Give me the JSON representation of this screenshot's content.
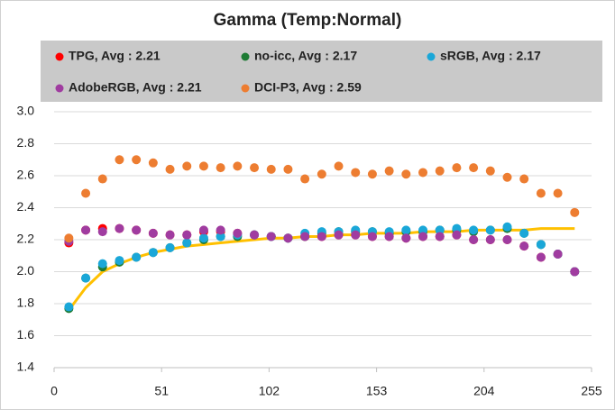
{
  "chart_data": {
    "type": "scatter",
    "title": "Gamma (Temp:Normal)",
    "x": [
      7,
      15,
      23,
      31,
      39,
      47,
      55,
      63,
      71,
      79,
      87,
      95,
      103,
      111,
      119,
      127,
      135,
      143,
      151,
      159,
      167,
      175,
      183,
      191,
      199,
      207,
      215,
      223,
      231,
      239,
      247
    ],
    "series": [
      {
        "name": "TPG, Avg : 2.21",
        "color": "#ff0000",
        "values": [
          2.18,
          2.26,
          2.27,
          2.27,
          2.26,
          2.24,
          2.23,
          2.23,
          2.25,
          2.25,
          2.24,
          2.23,
          2.22,
          2.21,
          2.22,
          2.22,
          2.23,
          2.23,
          2.22,
          2.22,
          2.21,
          2.22,
          2.22,
          2.23,
          2.2,
          2.2,
          2.2,
          2.16,
          2.09,
          2.11,
          2.0
        ]
      },
      {
        "name": "no-icc, Avg : 2.17",
        "color": "#1e7b34",
        "values": [
          1.77,
          1.96,
          2.03,
          2.06,
          2.09,
          2.12,
          2.15,
          2.18,
          2.2,
          2.22,
          2.22,
          2.23,
          2.22,
          2.21,
          2.22,
          2.24,
          2.25,
          2.25,
          2.25,
          2.24,
          2.25,
          2.25,
          2.26,
          2.26,
          2.25,
          2.26,
          2.27,
          2.24,
          2.17,
          2.11,
          2.0
        ]
      },
      {
        "name": "sRGB, Avg : 2.17",
        "color": "#1aa7d8",
        "values": [
          1.78,
          1.96,
          2.05,
          2.07,
          2.09,
          2.12,
          2.15,
          2.18,
          2.21,
          2.22,
          2.23,
          2.23,
          2.22,
          2.21,
          2.24,
          2.25,
          2.25,
          2.26,
          2.25,
          2.25,
          2.26,
          2.26,
          2.26,
          2.27,
          2.26,
          2.26,
          2.28,
          2.24,
          2.17,
          2.11,
          2.0
        ]
      },
      {
        "name": "AdobeRGB, Avg : 2.21",
        "color": "#a03ca0",
        "values": [
          2.19,
          2.26,
          2.25,
          2.27,
          2.26,
          2.24,
          2.23,
          2.23,
          2.26,
          2.26,
          2.24,
          2.23,
          2.22,
          2.21,
          2.22,
          2.22,
          2.23,
          2.23,
          2.22,
          2.22,
          2.21,
          2.22,
          2.22,
          2.23,
          2.2,
          2.2,
          2.2,
          2.16,
          2.09,
          2.11,
          2.0
        ]
      },
      {
        "name": "DCI-P3, Avg : 2.59",
        "color": "#ed7d31",
        "values": [
          2.21,
          2.49,
          2.58,
          2.7,
          2.7,
          2.68,
          2.64,
          2.66,
          2.66,
          2.65,
          2.66,
          2.65,
          2.64,
          2.64,
          2.58,
          2.61,
          2.66,
          2.62,
          2.61,
          2.63,
          2.61,
          2.62,
          2.63,
          2.65,
          2.65,
          2.63,
          2.59,
          2.58,
          2.49,
          2.49,
          2.37
        ]
      },
      {
        "type": "line",
        "color": "#ffc000",
        "values": [
          1.76,
          1.9,
          2.0,
          2.05,
          2.09,
          2.12,
          2.14,
          2.16,
          2.17,
          2.18,
          2.19,
          2.2,
          2.21,
          2.21,
          2.22,
          2.22,
          2.23,
          2.23,
          2.24,
          2.24,
          2.24,
          2.25,
          2.25,
          2.25,
          2.26,
          2.26,
          2.26,
          2.26,
          2.27,
          2.27,
          2.27
        ]
      }
    ],
    "xlim": [
      0,
      255
    ],
    "xticks": [
      0,
      51,
      102,
      153,
      204,
      255
    ],
    "ylim": [
      1.4,
      3.0
    ],
    "yticks": [
      1.4,
      1.6,
      1.8,
      {
        "value": 2,
        "label": "2.0"
      },
      2.2,
      2.4,
      2.6,
      2.8,
      {
        "value": 3,
        "label": "3.0"
      }
    ],
    "grid": true
  }
}
